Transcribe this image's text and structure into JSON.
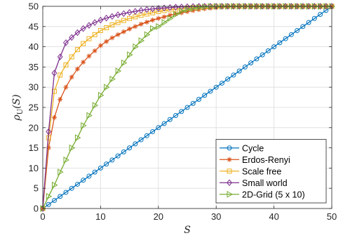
{
  "chart_data": {
    "type": "line",
    "xlabel": "S",
    "ylabel": "ρ",
    "ylabel_sub": "U",
    "ylabel_arg": "(S)",
    "xlim": [
      0,
      50
    ],
    "ylim": [
      0,
      50
    ],
    "xticks": [
      "0",
      "10",
      "20",
      "30",
      "40",
      "50"
    ],
    "yticks": [
      "0",
      "5",
      "10",
      "15",
      "20",
      "25",
      "30",
      "35",
      "40",
      "45",
      "50"
    ],
    "grid": true,
    "legend_position": "bottom-right",
    "x": [
      0,
      1,
      2,
      3,
      4,
      5,
      6,
      7,
      8,
      9,
      10,
      11,
      12,
      13,
      14,
      15,
      16,
      17,
      18,
      19,
      20,
      21,
      22,
      23,
      24,
      25,
      26,
      27,
      28,
      29,
      30,
      31,
      32,
      33,
      34,
      35,
      36,
      37,
      38,
      39,
      40,
      41,
      42,
      43,
      44,
      45,
      46,
      47,
      48,
      49,
      50
    ],
    "series": [
      {
        "name": "Cycle",
        "color": "#0072BD",
        "marker": "circle",
        "values": [
          0,
          1,
          2,
          3,
          4,
          5,
          6,
          7,
          8,
          9,
          10,
          11,
          12,
          13,
          14,
          15,
          16,
          17,
          18,
          19,
          20,
          21,
          22,
          23,
          24,
          25,
          26,
          27,
          28,
          29,
          30,
          31,
          32,
          33,
          34,
          35,
          36,
          37,
          38,
          39,
          40,
          41,
          42,
          43,
          44,
          45,
          46,
          47,
          48,
          49,
          50
        ]
      },
      {
        "name": "Erdos-Renyi",
        "color": "#D95319",
        "marker": "star",
        "values": [
          0,
          15,
          22.5,
          27,
          30,
          32.5,
          34.5,
          36.2,
          37.7,
          39,
          40.3,
          41.3,
          42.2,
          43,
          43.7,
          44.4,
          45,
          45.6,
          46.1,
          46.6,
          47,
          47.4,
          47.8,
          48.1,
          48.4,
          48.7,
          48.95,
          49.2,
          49.4,
          49.55,
          49.7,
          49.8,
          49.88,
          49.93,
          49.97,
          50,
          50,
          50,
          50,
          50,
          50,
          50,
          50,
          50,
          50,
          50,
          50,
          50,
          50,
          50,
          50
        ]
      },
      {
        "name": "Scale free",
        "color": "#EDB120",
        "marker": "square",
        "values": [
          0,
          17.5,
          29,
          33,
          35.5,
          37.5,
          39.3,
          40.8,
          42,
          43,
          44,
          44.7,
          45.4,
          46,
          46.5,
          47,
          47.4,
          47.8,
          48.1,
          48.4,
          48.7,
          48.95,
          49.15,
          49.3,
          49.45,
          49.6,
          49.7,
          49.8,
          49.87,
          49.92,
          49.96,
          50,
          50,
          50,
          50,
          50,
          50,
          50,
          50,
          50,
          50,
          50,
          50,
          50,
          50,
          50,
          50,
          50,
          50,
          50,
          50
        ]
      },
      {
        "name": "Small world",
        "color": "#7E2F8E",
        "marker": "diamond",
        "values": [
          0,
          19,
          33.5,
          37.5,
          41,
          42.3,
          43.5,
          44.5,
          45.3,
          46,
          46.6,
          47.1,
          47.5,
          47.9,
          48.2,
          48.5,
          48.75,
          49,
          49.2,
          49.35,
          49.5,
          49.6,
          49.7,
          49.8,
          49.85,
          49.9,
          49.95,
          50,
          50,
          50,
          50,
          50,
          50,
          50,
          50,
          50,
          50,
          50,
          50,
          50,
          50,
          50,
          50,
          50,
          50,
          50,
          50,
          50,
          50,
          50,
          50
        ]
      },
      {
        "name": "2D-Grid (5 x 10)",
        "color": "#77AC30",
        "marker": "triangle-right",
        "values": [
          0,
          3,
          5.8,
          9,
          12,
          15,
          17.5,
          20.5,
          23,
          25.5,
          28,
          30,
          32,
          34,
          36,
          38,
          40,
          41.5,
          43,
          44.5,
          45,
          46,
          47,
          48,
          48.8,
          49.2,
          49.5,
          49.7,
          49.85,
          49.95,
          50,
          50,
          50,
          50,
          50,
          50,
          50,
          50,
          50,
          50,
          50,
          50,
          50,
          50,
          50,
          50,
          50,
          50,
          50,
          50,
          50
        ]
      }
    ]
  }
}
